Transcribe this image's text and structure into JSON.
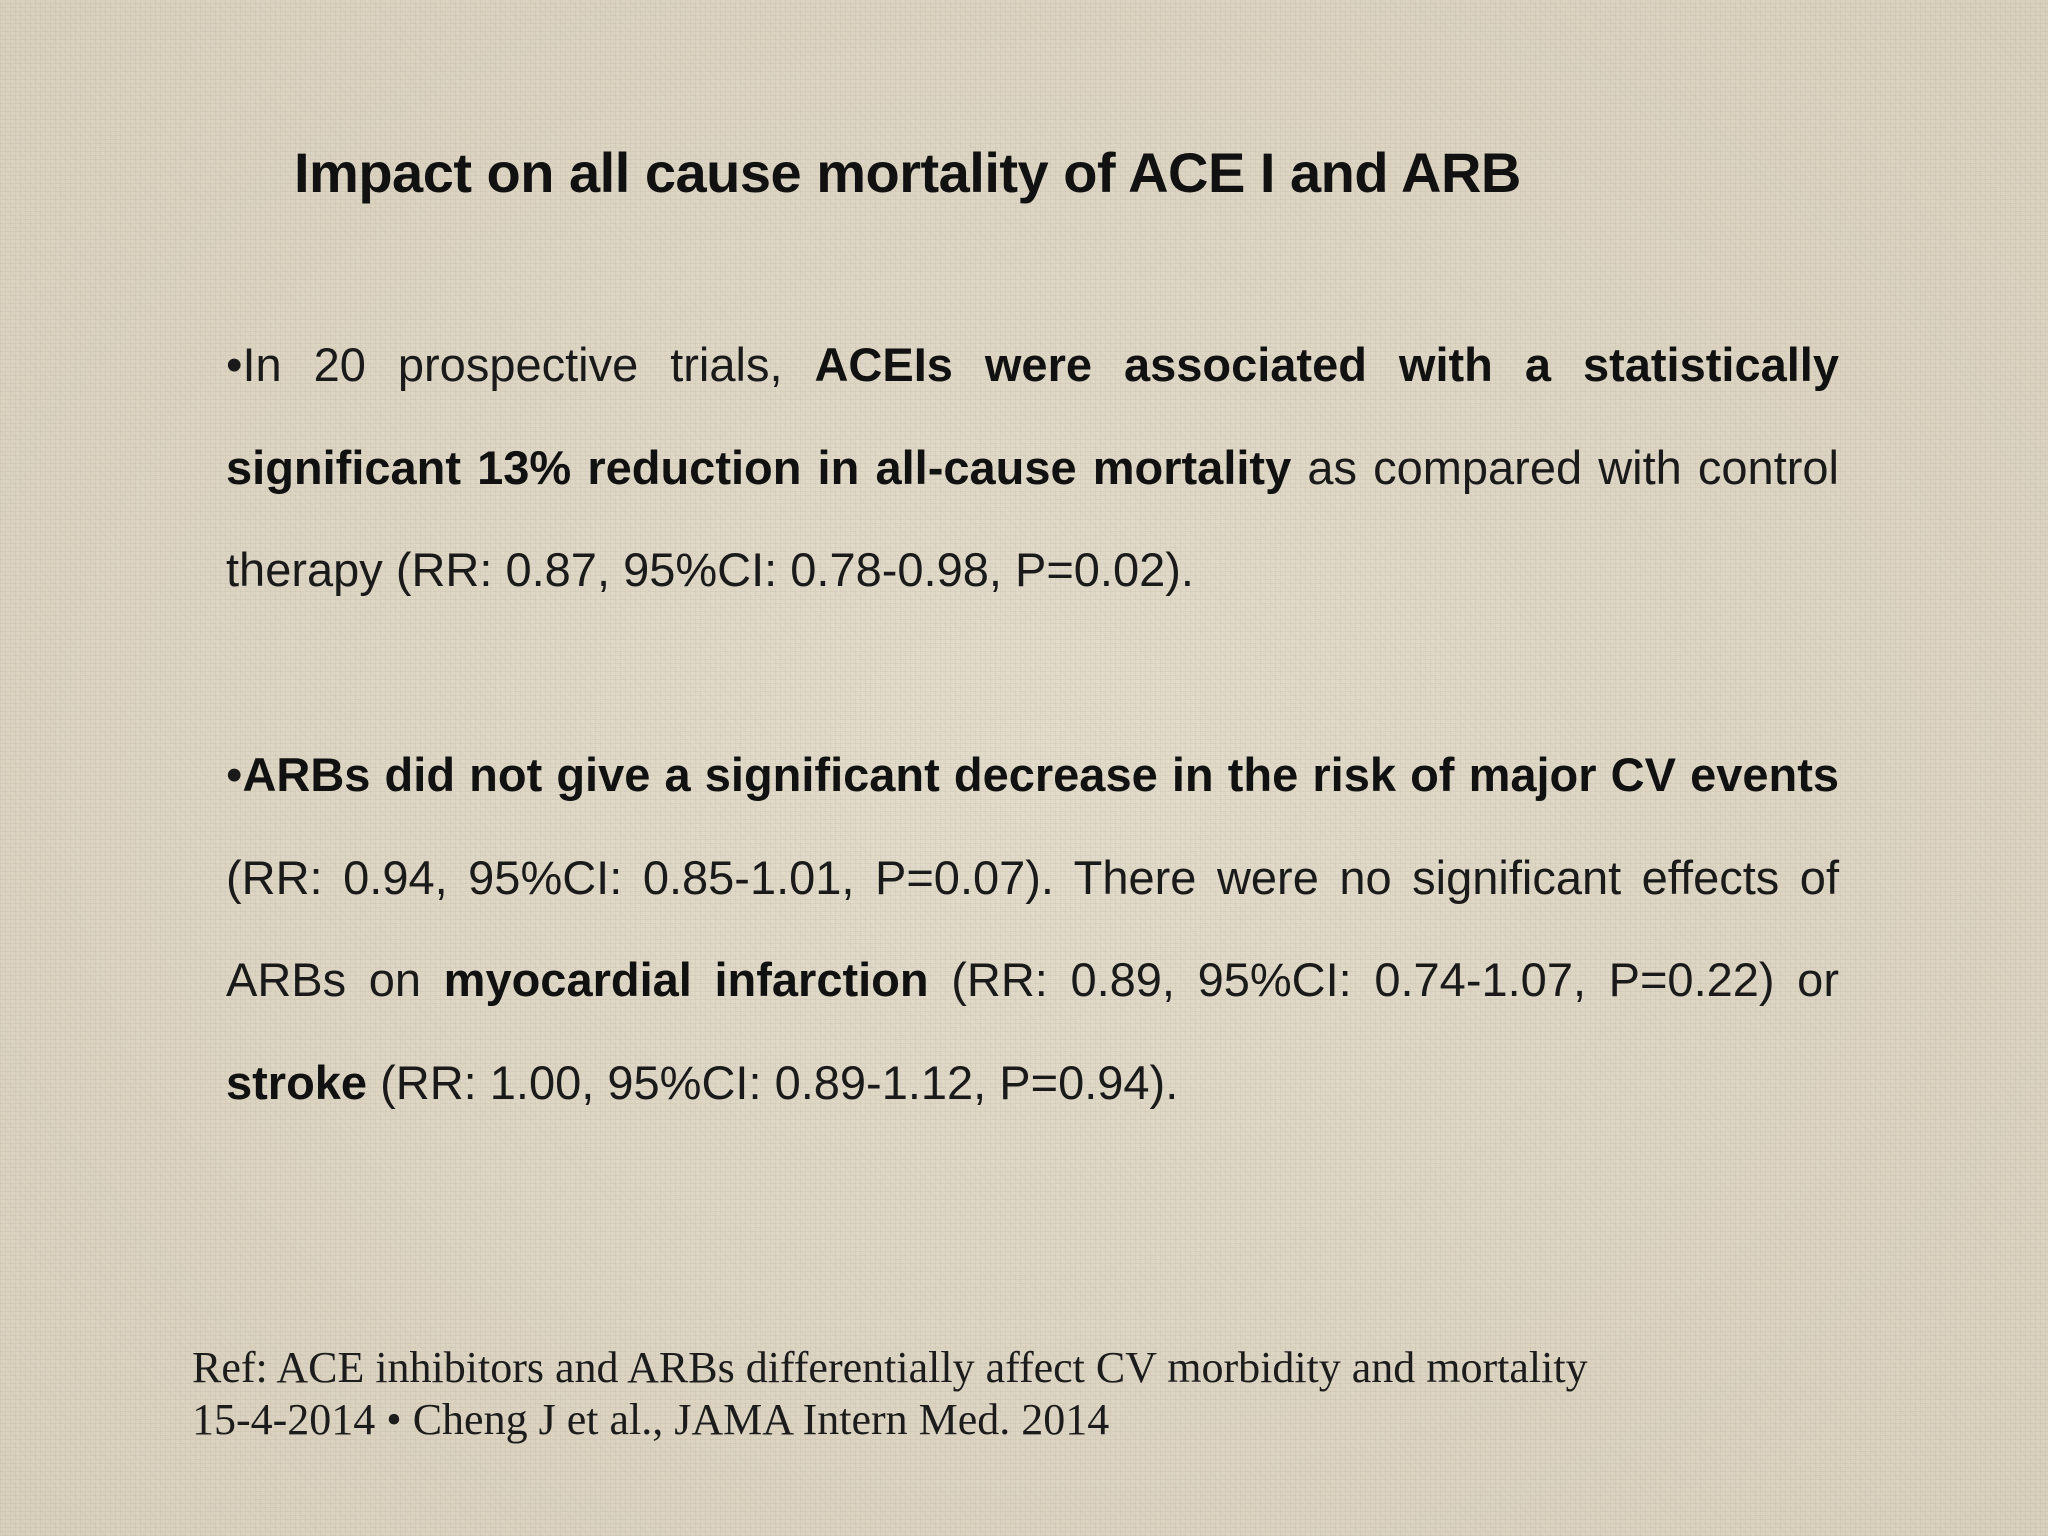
{
  "slide": {
    "title": "Impact on all cause mortality of ACE I and ARB",
    "bullet_char": "•",
    "bullet1": {
      "t1": "In 20 prospective trials, ",
      "b1": "ACEIs were associated with a statistically significant 13% reduction in all-cause mortality",
      "t2": " as compared with control therapy (RR: 0.87, 95%CI: 0.78-0.98, P=0.02)."
    },
    "bullet2": {
      "b1": "ARBs did not give a significant decrease in the risk of major CV events",
      "t1": " (RR: 0.94, 95%CI: 0.85-1.01, P=0.07). There were no significant effects of ARBs on ",
      "b2": "myocardial infarction",
      "t2": " (RR: 0.89, 95%CI: 0.74-1.07, P=0.22) or ",
      "b3": "stroke",
      "t3": " (RR: 1.00, 95%CI: 0.89-1.12, P=0.94)."
    },
    "reference": {
      "line1": "Ref: ACE inhibitors and ARBs differentially affect CV morbidity and mortality",
      "line2": "15-4-2014 • Cheng J et al., JAMA Intern Med. 2014"
    }
  }
}
